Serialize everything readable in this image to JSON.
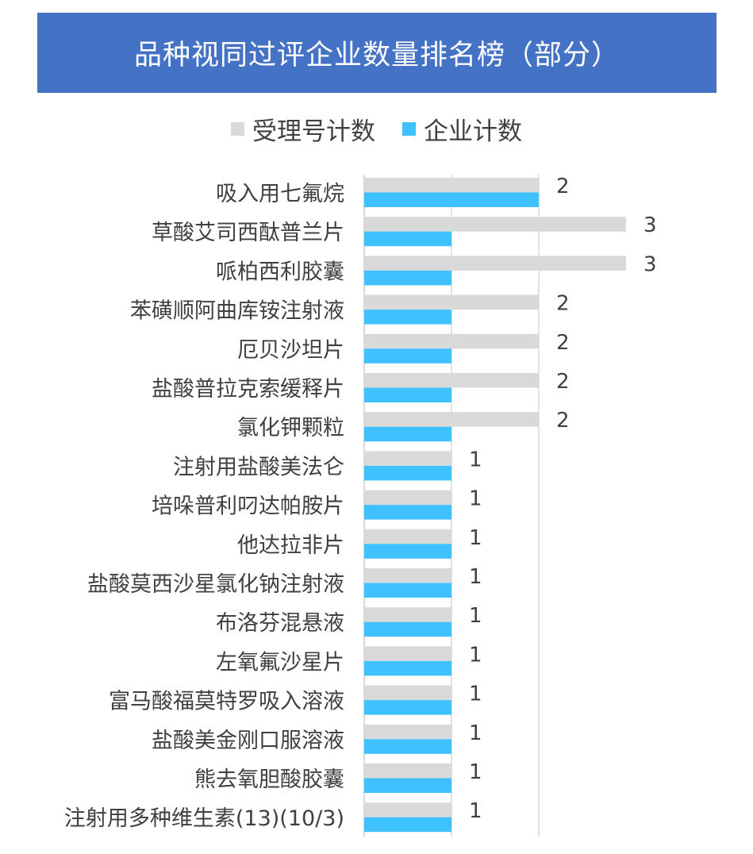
{
  "header": {
    "title": "品种视同过评企业数量排名榜（部分）"
  },
  "colors": {
    "banner": "#4472c4",
    "series_a": "#d9d9d9",
    "series_b": "#3fc1fd",
    "axis": "#d9d9d9",
    "text": "#404040"
  },
  "chart_data": {
    "type": "bar",
    "orientation": "horizontal",
    "categories": [
      "吸入用七氟烷",
      "草酸艾司西酞普兰片",
      "哌柏西利胶囊",
      "苯磺顺阿曲库铵注射液",
      "厄贝沙坦片",
      "盐酸普拉克索缓释片",
      "氯化钾颗粒",
      "注射用盐酸美法仑",
      "培哚普利叼达帕胺片",
      "他达拉非片",
      "盐酸莫西沙星氯化钠注射液",
      "布洛芬混悬液",
      "左氧氟沙星片",
      "富马酸福莫特罗吸入溶液",
      "盐酸美金刚口服溶液",
      "熊去氧胆酸胶囊",
      "注射用多种维生素(13)(10/3)"
    ],
    "series": [
      {
        "name": "受理号计数",
        "values": [
          2,
          3,
          3,
          2,
          2,
          2,
          2,
          1,
          1,
          1,
          1,
          1,
          1,
          1,
          1,
          1,
          1
        ]
      },
      {
        "name": "企业计数",
        "values": [
          2,
          1,
          1,
          1,
          1,
          1,
          1,
          1,
          1,
          1,
          1,
          1,
          1,
          1,
          1,
          1,
          1
        ]
      }
    ],
    "data_labels": [
      "2",
      "3",
      "3",
      "2",
      "2",
      "2",
      "2",
      "1",
      "1",
      "1",
      "1",
      "1",
      "1",
      "1",
      "1",
      "1",
      "1"
    ],
    "xlim": [
      0,
      3
    ],
    "grid": true,
    "legend": "top"
  }
}
